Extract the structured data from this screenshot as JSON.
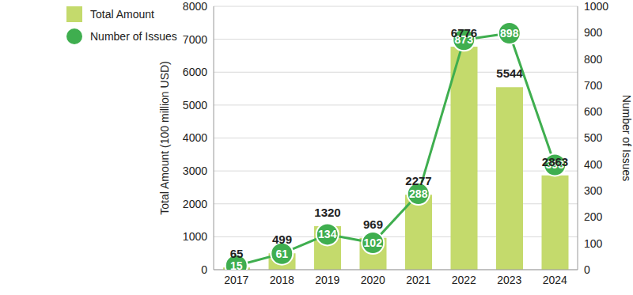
{
  "chart_data": {
    "type": "bar",
    "categories": [
      "2017",
      "2018",
      "2019",
      "2020",
      "2021",
      "2022",
      "2023",
      "2024"
    ],
    "series": [
      {
        "name": "Total Amount",
        "type": "bar",
        "color": "#c4da6c",
        "values": [
          65,
          499,
          1320,
          969,
          2277,
          6776,
          5544,
          2863
        ]
      },
      {
        "name": "Number of Issues",
        "type": "line",
        "axis": "y2",
        "color": "#3fae4f",
        "marker": "circle",
        "values": [
          15,
          61,
          134,
          102,
          288,
          873,
          898,
          398
        ]
      }
    ],
    "ylabel": "Total Amount (100 million USD)",
    "y2label": "Number of Issues",
    "ylim": [
      0,
      8000
    ],
    "yticks": [
      0,
      1000,
      2000,
      3000,
      4000,
      5000,
      6000,
      7000,
      8000
    ],
    "y2lim": [
      0,
      1000
    ],
    "y2ticks": [
      0,
      100,
      200,
      300,
      400,
      500,
      600,
      700,
      800,
      900,
      1000
    ],
    "grid": true,
    "legend": "top left",
    "data_labels": true
  }
}
